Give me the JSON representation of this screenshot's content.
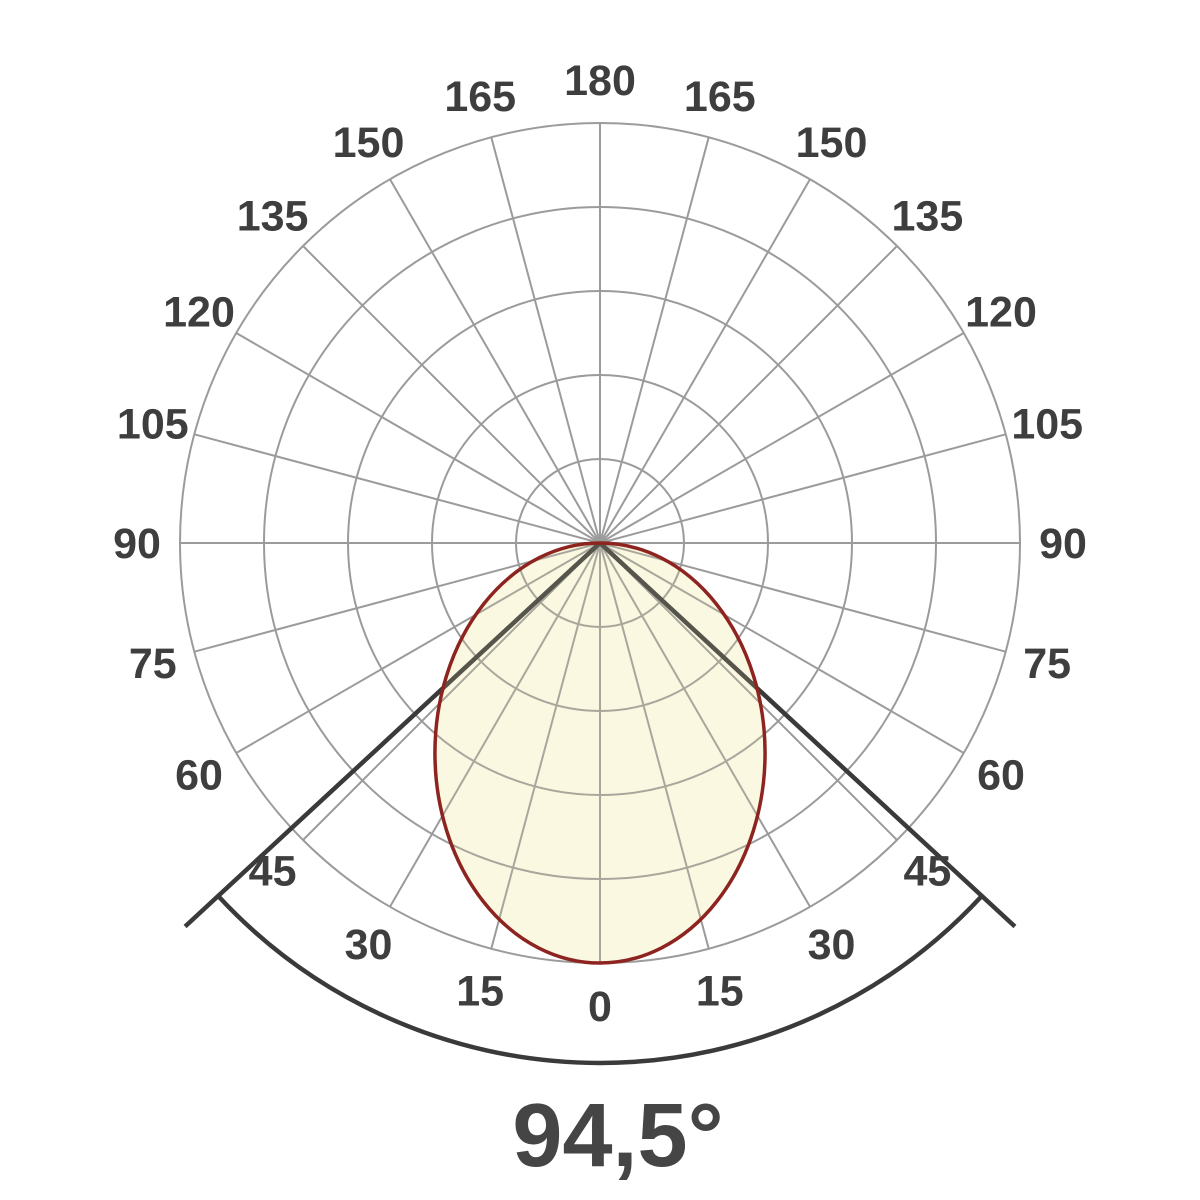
{
  "page": {
    "background": "#ffffff"
  },
  "chart_data": {
    "type": "polar",
    "subtype": "photometric-light-distribution-curve",
    "beam_angle_label": "94,5°",
    "beam_angle_deg": 94.5,
    "angle_step_deg": 15,
    "angle_labels": [
      "0",
      "15",
      "30",
      "45",
      "60",
      "75",
      "90",
      "105",
      "120",
      "135",
      "150",
      "165",
      "180"
    ],
    "labels_mirrored_both_sides": true,
    "ring_count": 5,
    "grid": true,
    "intensity_curve": {
      "angles_deg": [
        0,
        15,
        30,
        45,
        60,
        75,
        90
      ],
      "relative_intensity_pct": [
        100,
        92.7,
        75.0,
        54.0,
        34.1,
        16.4,
        0
      ],
      "symmetric": true,
      "shape": "ellipse",
      "ellipse_rx_pct_of_max": 39.3,
      "ellipse_ry_pct_of_max": 50
    },
    "colors": {
      "grid": "#9b9b9b",
      "grid_inside_lobe": "#a9a79c",
      "lobe_fill": "#faf8e1",
      "lobe_stroke": "#8e241f",
      "beam_line": "#3a3a3a",
      "beam_line_inside_lobe": "#56554b",
      "tick_label": "#3e3e3e",
      "beam_angle_text": "#454545"
    }
  }
}
